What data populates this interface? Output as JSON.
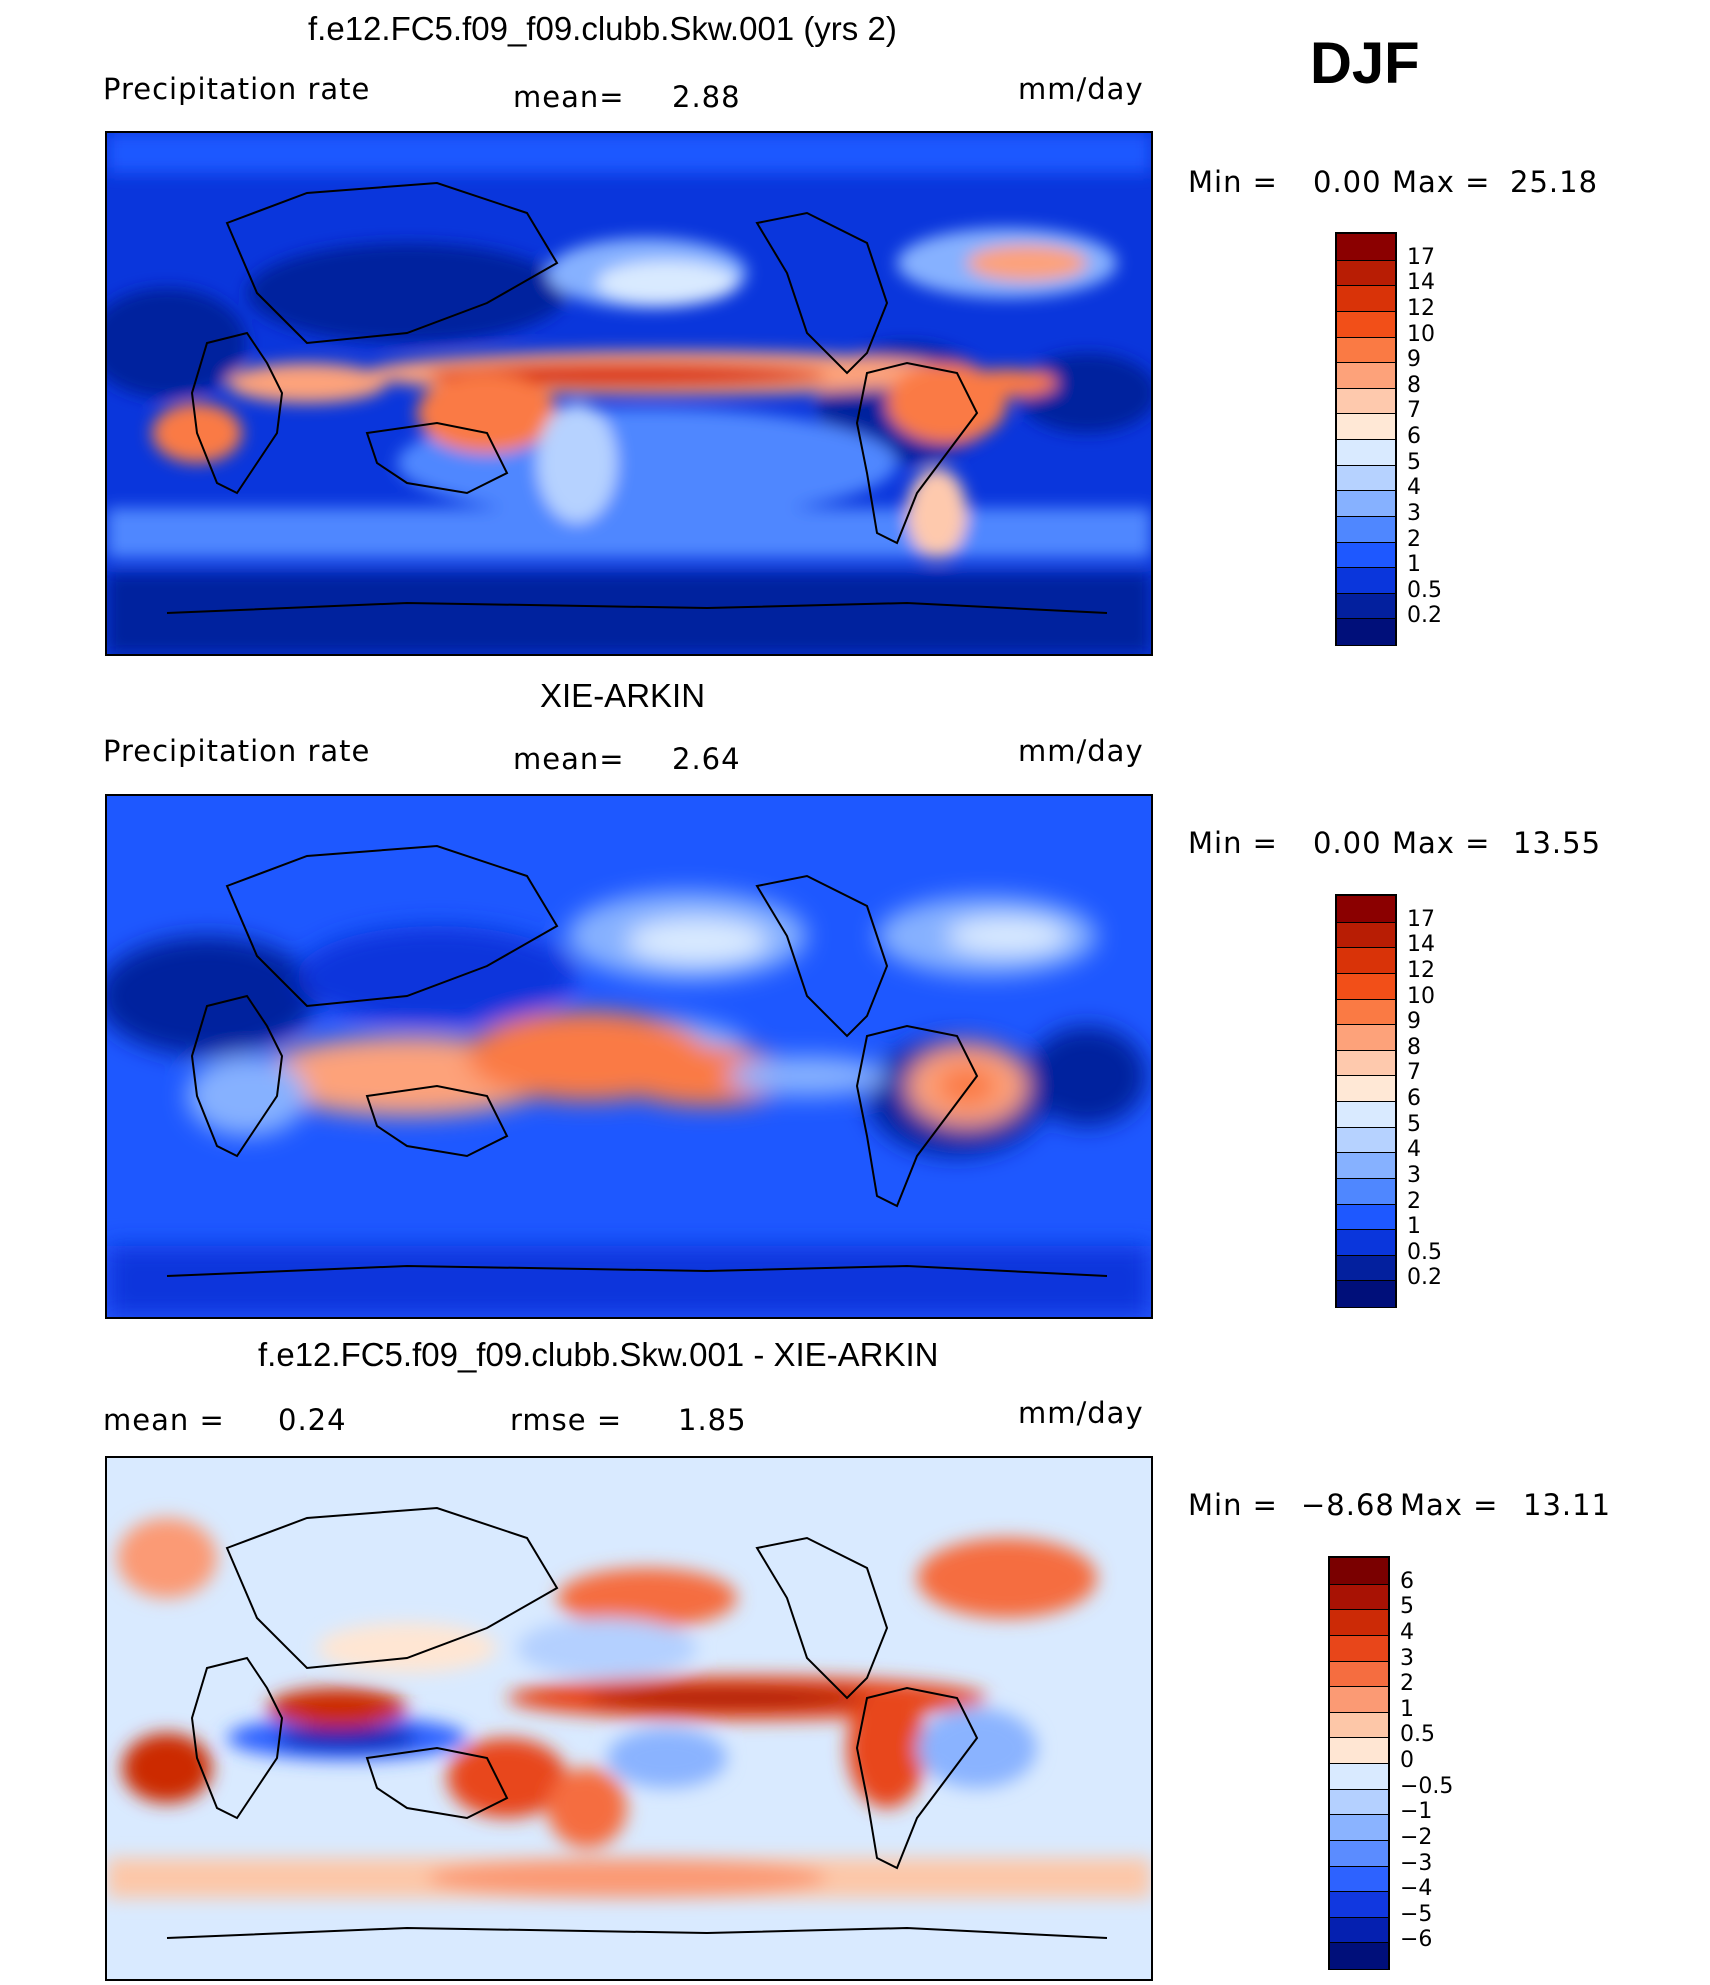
{
  "season": "DJF",
  "panels": [
    {
      "title": "f.e12.FC5.f09_f09.clubb.Skw.001 (yrs 2)",
      "left_label": "Precipitation rate",
      "stat1_label": "mean=",
      "stat1_value": "2.88",
      "stat2_label": "",
      "stat2_value": "",
      "units": "mm/day",
      "range": {
        "min_label": "Min =",
        "min": "0.00",
        "max_label": "Max =",
        "max": "25.18"
      },
      "colorbar": {
        "labels": [
          "17",
          "14",
          "12",
          "10",
          "9",
          "8",
          "7",
          "6",
          "5",
          "4",
          "3",
          "2",
          "1",
          "0.5",
          "0.2"
        ],
        "colors": [
          "#8b0000",
          "#b81d04",
          "#d93308",
          "#f24f18",
          "#fa7a44",
          "#fda27a",
          "#fec9ad",
          "#ffe8d6",
          "#d9eaff",
          "#b6d2ff",
          "#86b1ff",
          "#4f87ff",
          "#1e58ff",
          "#0a36dc",
          "#03209e",
          "#000f7a"
        ]
      }
    },
    {
      "title": "XIE-ARKIN",
      "left_label": "Precipitation rate",
      "stat1_label": "mean=",
      "stat1_value": "2.64",
      "stat2_label": "",
      "stat2_value": "",
      "units": "mm/day",
      "range": {
        "min_label": "Min =",
        "min": "0.00",
        "max_label": "Max =",
        "max": "13.55"
      },
      "colorbar": {
        "labels": [
          "17",
          "14",
          "12",
          "10",
          "9",
          "8",
          "7",
          "6",
          "5",
          "4",
          "3",
          "2",
          "1",
          "0.5",
          "0.2"
        ],
        "colors": [
          "#8b0000",
          "#b81d04",
          "#d93308",
          "#f24f18",
          "#fa7a44",
          "#fda27a",
          "#fec9ad",
          "#ffe8d6",
          "#d9eaff",
          "#b6d2ff",
          "#86b1ff",
          "#4f87ff",
          "#1e58ff",
          "#0a36dc",
          "#03209e",
          "#000f7a"
        ]
      }
    },
    {
      "title": "f.e12.FC5.f09_f09.clubb.Skw.001 - XIE-ARKIN",
      "left_label": "",
      "stat1_label": "mean =",
      "stat1_value": "0.24",
      "stat2_label": "rmse =",
      "stat2_value": "1.85",
      "units": "mm/day",
      "range": {
        "min_label": "Min =",
        "min": "−8.68",
        "max_label": "Max =",
        "max": "13.11"
      },
      "colorbar": {
        "labels": [
          "6",
          "5",
          "4",
          "3",
          "2",
          "1",
          "0.5",
          "0",
          "−0.5",
          "−1",
          "−2",
          "−3",
          "−4",
          "−5",
          "−6"
        ],
        "colors": [
          "#7a0000",
          "#a81204",
          "#cc2a06",
          "#e8461a",
          "#f56d40",
          "#fb9a74",
          "#fdc7a8",
          "#ffe6d3",
          "#d9eaff",
          "#b4d0ff",
          "#8ab3ff",
          "#5b8cff",
          "#2d62ff",
          "#1138e0",
          "#0520b0",
          "#000f7a"
        ]
      }
    }
  ]
}
